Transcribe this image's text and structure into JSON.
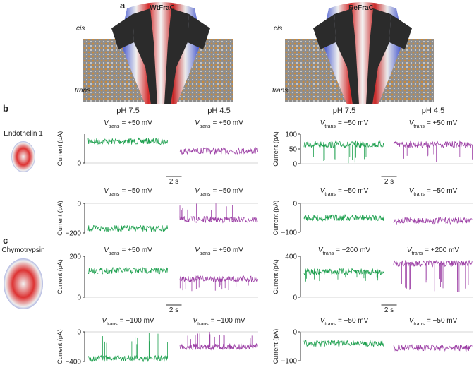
{
  "panel_a": {
    "label": "a",
    "structures": [
      "WtFraC",
      "ReFraC"
    ],
    "cis": "cis",
    "trans": "trans"
  },
  "voltage_symbol": "V",
  "voltage_subscript": "trans",
  "y_label": "Current (pA)",
  "scale_bar": "2 s",
  "conditions": [
    {
      "name": "pH 7.5",
      "color": "#1ea04f"
    },
    {
      "name": "pH 4.5",
      "color": "#9c3fa5"
    }
  ],
  "panels": [
    {
      "label": "b",
      "substrate": "Endothelin 1",
      "plots": [
        {
          "voltage": "= +50 mV",
          "ylim": [
            0,
            100
          ],
          "yticks": [
            0
          ],
          "traces": [
            {
              "level": 75
            },
            {
              "level": 42
            }
          ]
        },
        {
          "voltage": "= +50 mV",
          "ylim": [
            0,
            100
          ],
          "yticks": [
            0,
            50,
            100
          ],
          "traces": [
            {
              "level": 65,
              "block_level": 0
            },
            {
              "level": 65,
              "block_level": 0
            }
          ]
        },
        {
          "voltage": "= −50 mV",
          "ylim": [
            -200,
            0
          ],
          "yticks": [
            {
              "value": -200,
              "label": "−200"
            },
            0
          ],
          "traces": [
            {
              "level": -170
            },
            {
              "level": -110,
              "block_level": 0
            }
          ]
        },
        {
          "voltage": "= −50 mV",
          "ylim": [
            -100,
            0
          ],
          "yticks": [
            {
              "value": -100,
              "label": "−100"
            },
            0
          ],
          "traces": [
            {
              "level": -50
            },
            {
              "level": -60
            }
          ]
        }
      ]
    },
    {
      "label": "c",
      "substrate": "Chymotrypsin",
      "plots": [
        {
          "voltage": "= +50 mV",
          "ylim": [
            0,
            200
          ],
          "yticks": [
            0,
            200
          ],
          "traces": [
            {
              "level": 130
            },
            {
              "level": 90,
              "block_level": 30
            }
          ]
        },
        {
          "voltage": "= +200 mV",
          "ylim": [
            0,
            400
          ],
          "yticks": [
            0,
            400
          ],
          "traces": [
            {
              "level": 250,
              "block_level": 150
            },
            {
              "level": 330,
              "block_level": 40
            }
          ]
        },
        {
          "voltage": "= −100 mV",
          "ylim": [
            -400,
            0
          ],
          "yticks": [
            {
              "value": -400,
              "label": "−400"
            },
            0
          ],
          "traces": [
            {
              "level": -360,
              "block_level": 0
            },
            {
              "level": -200,
              "block_level": 0
            }
          ]
        },
        {
          "voltage": "= −50 mV",
          "ylim": [
            -100,
            0
          ],
          "yticks": [
            {
              "value": -100,
              "label": "−100"
            },
            0
          ],
          "traces": [
            {
              "level": -40
            },
            {
              "level": -55
            }
          ]
        }
      ]
    }
  ]
}
